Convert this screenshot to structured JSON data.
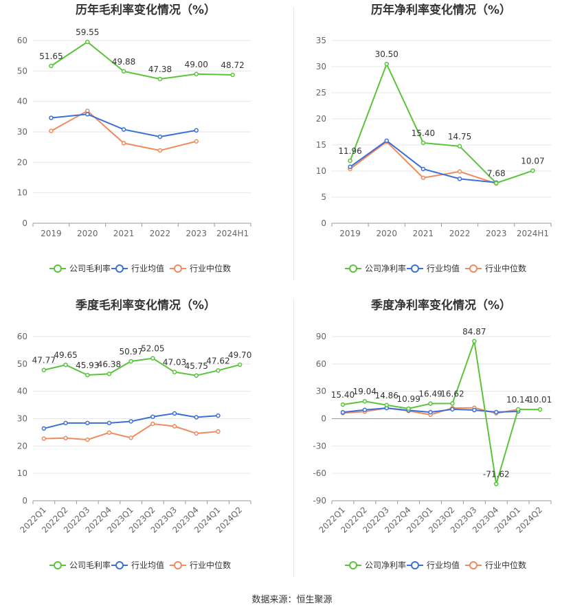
{
  "source": "数据来源：恒生聚源",
  "colors": {
    "company": "#58c43a",
    "avg": "#3a6fd8",
    "median": "#f08a5d"
  },
  "chart_data": [
    {
      "type": "line",
      "title": "历年毛利率变化情况（%）",
      "categories": [
        "2019",
        "2020",
        "2021",
        "2022",
        "2023",
        "2024H1"
      ],
      "ylim": [
        0,
        60
      ],
      "yticks": [
        0,
        10,
        20,
        30,
        40,
        50,
        60
      ],
      "label_series": 0,
      "rotate_x": false,
      "series": [
        {
          "name": "公司毛利率",
          "color": "#58c43a",
          "values": [
            51.65,
            59.55,
            49.88,
            47.38,
            49.0,
            48.72
          ],
          "labels": [
            "51.65",
            "59.55",
            "49.88",
            "47.38",
            "49.00",
            "48.72"
          ]
        },
        {
          "name": "行业均值",
          "color": "#3a6fd8",
          "values": [
            34.6,
            35.8,
            30.8,
            28.4,
            30.5,
            null
          ]
        },
        {
          "name": "行业中位数",
          "color": "#f08a5d",
          "values": [
            30.3,
            36.9,
            26.3,
            23.9,
            26.9,
            null
          ]
        }
      ]
    },
    {
      "type": "line",
      "title": "历年净利率变化情况（%）",
      "categories": [
        "2019",
        "2020",
        "2021",
        "2022",
        "2023",
        "2024H1"
      ],
      "ylim": [
        0,
        35
      ],
      "yticks": [
        0,
        5,
        10,
        15,
        20,
        25,
        30,
        35
      ],
      "label_series": 0,
      "rotate_x": false,
      "series": [
        {
          "name": "公司净利率",
          "color": "#58c43a",
          "values": [
            11.96,
            30.5,
            15.4,
            14.75,
            7.68,
            10.07
          ],
          "labels": [
            "11.96",
            "30.50",
            "15.40",
            "14.75",
            "7.68",
            "10.07"
          ]
        },
        {
          "name": "行业均值",
          "color": "#3a6fd8",
          "values": [
            10.8,
            15.8,
            10.4,
            8.5,
            7.8,
            null
          ]
        },
        {
          "name": "行业中位数",
          "color": "#f08a5d",
          "values": [
            10.4,
            15.6,
            8.7,
            9.9,
            7.6,
            null
          ]
        }
      ]
    },
    {
      "type": "line",
      "title": "季度毛利率变化情况（%）",
      "categories": [
        "2022Q1",
        "2022Q2",
        "2022Q3",
        "2022Q4",
        "2023Q1",
        "2023Q2",
        "2023Q3",
        "2023Q4",
        "2024Q1",
        "2024Q2"
      ],
      "ylim": [
        0,
        60
      ],
      "yticks": [
        0,
        10,
        20,
        30,
        40,
        50,
        60
      ],
      "label_series": 0,
      "rotate_x": true,
      "series": [
        {
          "name": "公司毛利率",
          "color": "#58c43a",
          "values": [
            47.77,
            49.65,
            45.93,
            46.38,
            50.97,
            52.05,
            47.03,
            45.75,
            47.62,
            49.7
          ],
          "labels": [
            "47.77",
            "49.65",
            "45.93",
            "46.38",
            "50.97",
            "52.05",
            "47.03",
            "45.75",
            "47.62",
            "49.70"
          ]
        },
        {
          "name": "行业均值",
          "color": "#3a6fd8",
          "values": [
            26.4,
            28.4,
            28.4,
            28.4,
            29.0,
            30.7,
            31.9,
            30.5,
            31.1,
            null
          ]
        },
        {
          "name": "行业中位数",
          "color": "#f08a5d",
          "values": [
            22.7,
            22.9,
            22.3,
            24.9,
            23.0,
            28.1,
            27.2,
            24.6,
            25.3,
            null
          ]
        }
      ]
    },
    {
      "type": "line",
      "title": "季度净利率变化情况（%）",
      "categories": [
        "2022Q1",
        "2022Q2",
        "2022Q3",
        "2022Q4",
        "2023Q1",
        "2023Q2",
        "2023Q3",
        "2023Q4",
        "2024Q1",
        "2024Q2"
      ],
      "ylim": [
        -90,
        90
      ],
      "yticks": [
        -90,
        -60,
        -30,
        0,
        30,
        60,
        90
      ],
      "label_series": 0,
      "rotate_x": true,
      "series": [
        {
          "name": "公司净利率",
          "color": "#58c43a",
          "values": [
            15.4,
            19.04,
            14.86,
            10.99,
            16.49,
            16.62,
            84.87,
            -71.62,
            10.14,
            10.01
          ],
          "labels": [
            "15.40",
            "19.04",
            "14.86",
            "10.99",
            "16.49",
            "16.62",
            "84.87",
            "-71.62",
            "10.14",
            "10.01"
          ]
        },
        {
          "name": "行业均值",
          "color": "#3a6fd8",
          "values": [
            7.0,
            9.6,
            11.6,
            9.1,
            7.1,
            10.3,
            9.4,
            7.2,
            7.9,
            null
          ]
        },
        {
          "name": "行业中位数",
          "color": "#f08a5d",
          "values": [
            6.1,
            7.7,
            11.6,
            8.5,
            4.3,
            11.6,
            11.9,
            5.9,
            10.1,
            null
          ]
        }
      ]
    }
  ]
}
